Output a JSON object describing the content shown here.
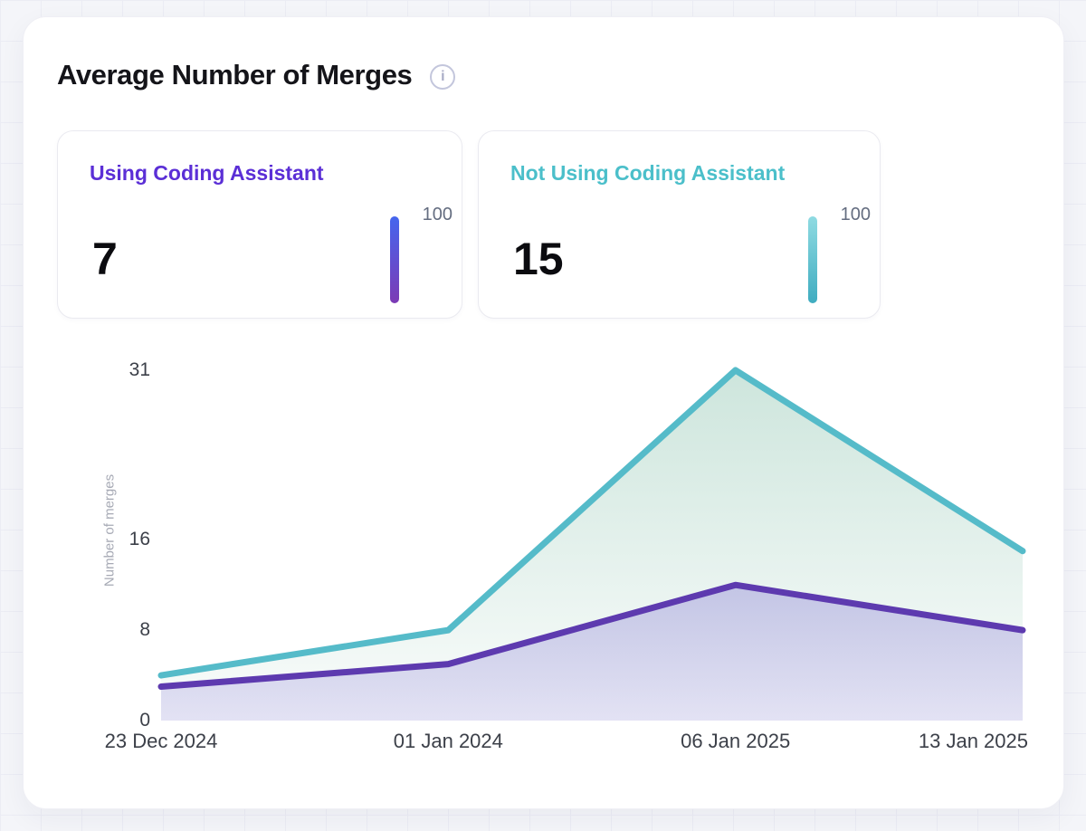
{
  "header": {
    "title": "Average Number of Merges"
  },
  "icons": {
    "info_glyph": "i",
    "info_name": "info-icon"
  },
  "stat_cards": [
    {
      "label": "Using Coding Assistant",
      "value": "7",
      "scale_max": "100",
      "accent": "#5B2FD6",
      "bar_top": "#4566EE",
      "bar_bottom": "#7C3AB5"
    },
    {
      "label": "Not Using Coding Assistant",
      "value": "15",
      "scale_max": "100",
      "accent": "#4BBFCA",
      "bar_top": "#8FDBE2",
      "bar_bottom": "#3FACC0"
    }
  ],
  "chart_data": {
    "type": "area",
    "title": "Average Number of Merges",
    "x": [
      "23 Dec 2024",
      "01 Jan 2024",
      "06 Jan 2025",
      "13 Jan 2025"
    ],
    "series": [
      {
        "name": "Using Coding Assistant",
        "values": [
          3,
          5,
          12,
          8
        ],
        "line_color": "#5D3AAF",
        "fill_top": "rgba(109,90,205,0.30)",
        "fill_bottom": "rgba(109,90,205,0.16)"
      },
      {
        "name": "Not Using Coding Assistant",
        "values": [
          4,
          8,
          31,
          15
        ],
        "line_color": "#55BBC9",
        "fill_top": "rgba(90,170,140,0.30)",
        "fill_bottom": "rgba(90,170,140,0.03)"
      }
    ],
    "xlabel": "",
    "ylabel": "Number of merges",
    "yticks": [
      0,
      8,
      16,
      31
    ],
    "ylim": [
      0,
      31
    ],
    "grid": false,
    "legend_position": "none"
  }
}
